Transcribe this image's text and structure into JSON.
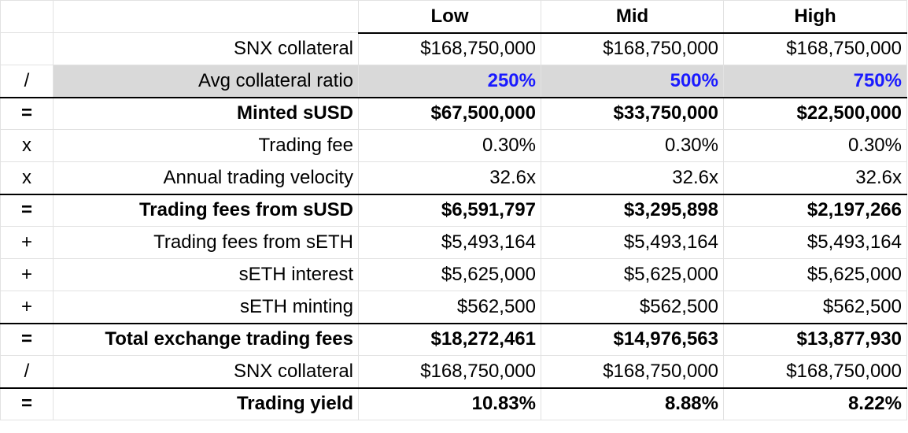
{
  "columns": [
    "Low",
    "Mid",
    "High"
  ],
  "highlight_color": "#1a1aff",
  "rows": [
    {
      "op": "",
      "label": "SNX collateral",
      "values": [
        "$168,750,000",
        "$168,750,000",
        "$168,750,000"
      ]
    },
    {
      "op": "/",
      "label": "Avg collateral ratio",
      "values": [
        "250%",
        "500%",
        "750%"
      ]
    },
    {
      "op": "=",
      "label": "Minted sUSD",
      "values": [
        "$67,500,000",
        "$33,750,000",
        "$22,500,000"
      ]
    },
    {
      "op": "x",
      "label": "Trading fee",
      "values": [
        "0.30%",
        "0.30%",
        "0.30%"
      ]
    },
    {
      "op": "x",
      "label": "Annual trading velocity",
      "values": [
        "32.6x",
        "32.6x",
        "32.6x"
      ]
    },
    {
      "op": "=",
      "label": "Trading fees from sUSD",
      "values": [
        "$6,591,797",
        "$3,295,898",
        "$2,197,266"
      ]
    },
    {
      "op": "+",
      "label": "Trading fees from sETH",
      "values": [
        "$5,493,164",
        "$5,493,164",
        "$5,493,164"
      ]
    },
    {
      "op": "+",
      "label": "sETH interest",
      "values": [
        "$5,625,000",
        "$5,625,000",
        "$5,625,000"
      ]
    },
    {
      "op": "+",
      "label": "sETH minting",
      "values": [
        "$562,500",
        "$562,500",
        "$562,500"
      ]
    },
    {
      "op": "=",
      "label": "Total exchange trading fees",
      "values": [
        "$18,272,461",
        "$14,976,563",
        "$13,877,930"
      ]
    },
    {
      "op": "/",
      "label": "SNX collateral",
      "values": [
        "$168,750,000",
        "$168,750,000",
        "$168,750,000"
      ]
    },
    {
      "op": "=",
      "label": "Trading yield",
      "values": [
        "10.83%",
        "8.88%",
        "8.22%"
      ]
    }
  ]
}
